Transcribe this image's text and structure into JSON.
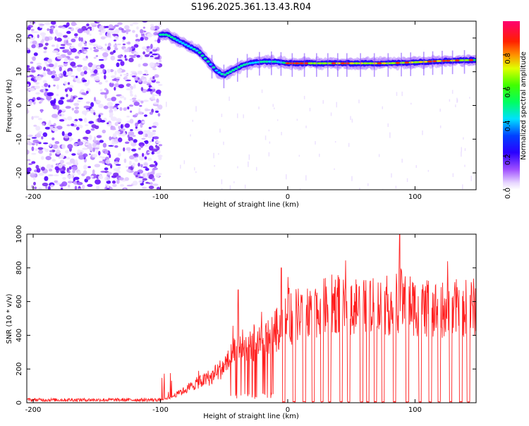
{
  "title": "S196.2025.361.13.43.R04",
  "chart_data": [
    {
      "type": "heatmap",
      "title": "S196.2025.361.13.43.R04",
      "xlabel": "Height of straight line (km)",
      "ylabel": "Frequency (Hz)",
      "xlim": [
        -205,
        148
      ],
      "ylim": [
        -25,
        25
      ],
      "xticks": [
        -200,
        -100,
        0,
        100
      ],
      "yticks": [
        -20,
        -10,
        0,
        10,
        20
      ],
      "colorbar": {
        "label": "Normalized spectral amplitude",
        "range": [
          0,
          1
        ],
        "ticks": [
          "0.0",
          "0.2",
          "0.4",
          "0.6",
          "0.8"
        ],
        "colors": [
          "#ffffff",
          "#d8c0ff",
          "#8a2be2",
          "#3a00ff",
          "#0000ff",
          "#00c8ff",
          "#00ff80",
          "#a0ff00",
          "#ffff00",
          "#ff8000",
          "#ff0000",
          "#ff0080"
        ]
      },
      "ridge": {
        "x": [
          -100,
          -95,
          -90,
          -85,
          -80,
          -75,
          -70,
          -65,
          -60,
          -55,
          -50,
          -45,
          -40,
          -35,
          -30,
          -20,
          -10,
          0,
          20,
          40,
          60,
          80,
          100,
          120,
          148
        ],
        "freq": [
          21,
          21,
          20,
          19,
          18,
          17,
          16,
          14,
          12,
          10,
          9,
          10,
          11,
          12,
          12.5,
          13,
          13,
          12.5,
          12.5,
          12.5,
          12.5,
          12.5,
          12.8,
          13.2,
          13.5
        ]
      },
      "noise_region_x": [
        -205,
        -100
      ]
    },
    {
      "type": "line",
      "xlabel": "Height of straight line (km)",
      "ylabel": "SNR (10 * v/v)",
      "xlim": [
        -205,
        148
      ],
      "ylim": [
        0,
        1000
      ],
      "xticks": [
        -200,
        -100,
        0,
        100
      ],
      "yticks": [
        0,
        200,
        400,
        600,
        800,
        1000
      ],
      "color": "#ff2020",
      "envelope": {
        "x": [
          -205,
          -100,
          -90,
          -80,
          -70,
          -60,
          -50,
          -40,
          -30,
          -20,
          -10,
          0,
          10,
          20,
          30,
          40,
          50,
          60,
          70,
          80,
          90,
          100,
          110,
          120,
          130,
          140,
          148
        ],
        "snr": [
          18,
          18,
          45,
          90,
          140,
          170,
          250,
          340,
          390,
          410,
          480,
          560,
          600,
          630,
          650,
          680,
          670,
          640,
          650,
          660,
          700,
          650,
          640,
          630,
          640,
          640,
          650
        ]
      },
      "peaks": [
        {
          "x": 1,
          "snr": 680
        },
        {
          "x": -39,
          "snr": 670
        },
        {
          "x": -5,
          "snr": 800
        },
        {
          "x": 88,
          "snr": 1000
        }
      ],
      "dropouts_x": [
        -3,
        5,
        13,
        20,
        27,
        33,
        42,
        48,
        58,
        63,
        69,
        75,
        84,
        94,
        104,
        112,
        119,
        128,
        136,
        142
      ]
    }
  ]
}
